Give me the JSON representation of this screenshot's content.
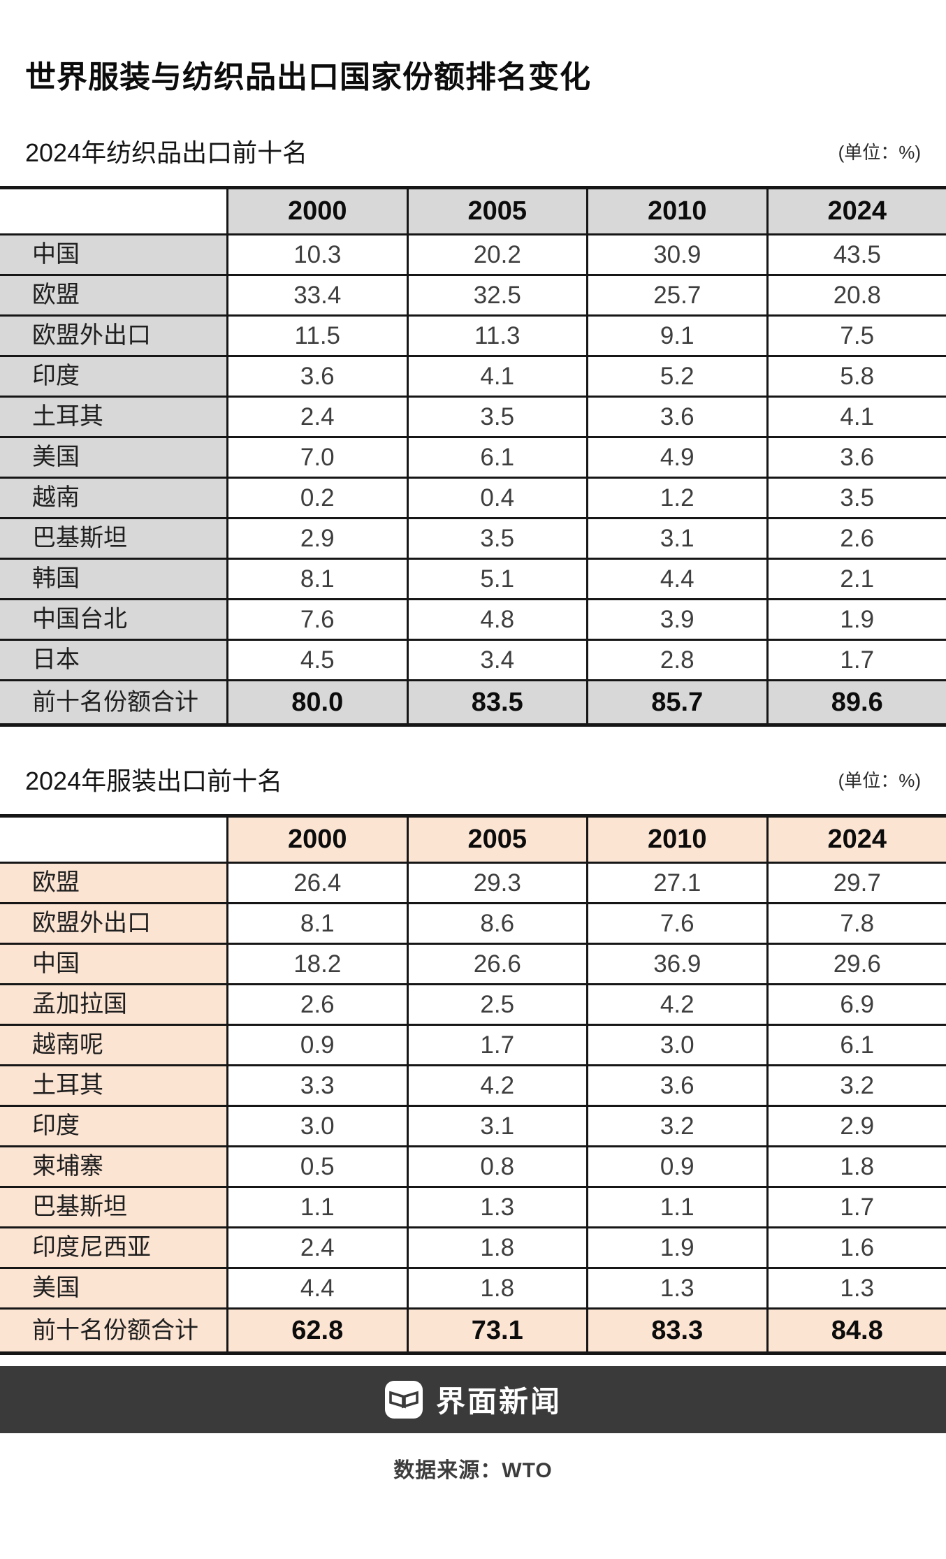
{
  "page_title": "世界服装与纺织品出口国家份额排名变化",
  "chart_data": [
    {
      "type": "table",
      "title": "2024年纺织品出口前十名",
      "unit": "(单位：%)",
      "fill_color": "#d8d8d8",
      "columns": [
        "2000",
        "2005",
        "2010",
        "2024"
      ],
      "rows": [
        {
          "label": "中国",
          "values": [
            "10.3",
            "20.2",
            "30.9",
            "43.5"
          ]
        },
        {
          "label": "欧盟",
          "values": [
            "33.4",
            "32.5",
            "25.7",
            "20.8"
          ]
        },
        {
          "label": "欧盟外出口",
          "values": [
            "11.5",
            "11.3",
            "9.1",
            "7.5"
          ]
        },
        {
          "label": "印度",
          "values": [
            "3.6",
            "4.1",
            "5.2",
            "5.8"
          ]
        },
        {
          "label": "土耳其",
          "values": [
            "2.4",
            "3.5",
            "3.6",
            "4.1"
          ]
        },
        {
          "label": "美国",
          "values": [
            "7.0",
            "6.1",
            "4.9",
            "3.6"
          ]
        },
        {
          "label": "越南",
          "values": [
            "0.2",
            "0.4",
            "1.2",
            "3.5"
          ]
        },
        {
          "label": "巴基斯坦",
          "values": [
            "2.9",
            "3.5",
            "3.1",
            "2.6"
          ]
        },
        {
          "label": "韩国",
          "values": [
            "8.1",
            "5.1",
            "4.4",
            "2.1"
          ]
        },
        {
          "label": "中国台北",
          "values": [
            "7.6",
            "4.8",
            "3.9",
            "1.9"
          ]
        },
        {
          "label": "日本",
          "values": [
            "4.5",
            "3.4",
            "2.8",
            "1.7"
          ]
        }
      ],
      "total": {
        "label": "前十名份额合计",
        "values": [
          "80.0",
          "83.5",
          "85.7",
          "89.6"
        ]
      }
    },
    {
      "type": "table",
      "title": "2024年服装出口前十名",
      "unit": "(单位：%)",
      "fill_color": "#fce4d3",
      "columns": [
        "2000",
        "2005",
        "2010",
        "2024"
      ],
      "rows": [
        {
          "label": "欧盟",
          "values": [
            "26.4",
            "29.3",
            "27.1",
            "29.7"
          ]
        },
        {
          "label": "欧盟外出口",
          "values": [
            "8.1",
            "8.6",
            "7.6",
            "7.8"
          ]
        },
        {
          "label": "中国",
          "values": [
            "18.2",
            "26.6",
            "36.9",
            "29.6"
          ]
        },
        {
          "label": "孟加拉国",
          "values": [
            "2.6",
            "2.5",
            "4.2",
            "6.9"
          ]
        },
        {
          "label": "越南呢",
          "values": [
            "0.9",
            "1.7",
            "3.0",
            "6.1"
          ]
        },
        {
          "label": "土耳其",
          "values": [
            "3.3",
            "4.2",
            "3.6",
            "3.2"
          ]
        },
        {
          "label": "印度",
          "values": [
            "3.0",
            "3.1",
            "3.2",
            "2.9"
          ]
        },
        {
          "label": "柬埔寨",
          "values": [
            "0.5",
            "0.8",
            "0.9",
            "1.8"
          ]
        },
        {
          "label": "巴基斯坦",
          "values": [
            "1.1",
            "1.3",
            "1.1",
            "1.7"
          ]
        },
        {
          "label": "印度尼西亚",
          "values": [
            "2.4",
            "1.8",
            "1.9",
            "1.6"
          ]
        },
        {
          "label": "美国",
          "values": [
            "4.4",
            "1.8",
            "1.3",
            "1.3"
          ]
        }
      ],
      "total": {
        "label": "前十名份额合计",
        "values": [
          "62.8",
          "73.1",
          "83.3",
          "84.8"
        ]
      }
    }
  ],
  "footer": {
    "brand": "界面新闻",
    "logo_icon": "jiemian-logo"
  },
  "source": "数据来源：WTO"
}
